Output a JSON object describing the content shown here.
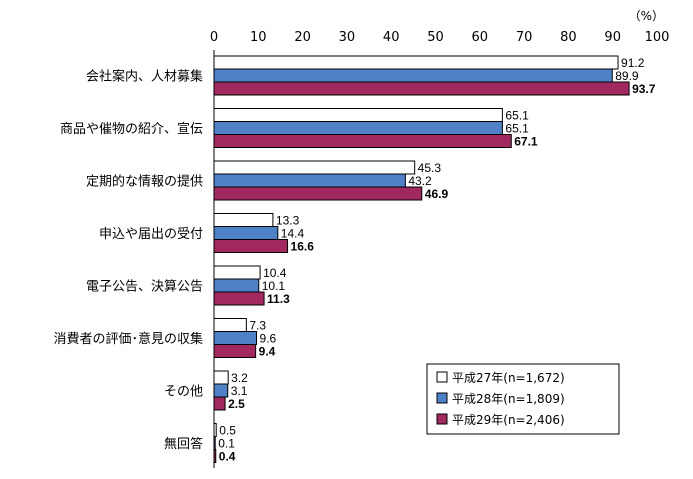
{
  "chart_data": {
    "type": "bar",
    "orientation": "horizontal",
    "unit": "（%）",
    "xlim": [
      0,
      100
    ],
    "xticks": [
      "0",
      "10",
      "20",
      "30",
      "40",
      "50",
      "60",
      "70",
      "80",
      "90",
      "100"
    ],
    "categories": [
      "会社案内、人材募集",
      "商品や催物の紹介、宣伝",
      "定期的な情報の提供",
      "申込や届出の受付",
      "電子公告、決算公告",
      "消費者の評価･意見の収集",
      "その他",
      "無回答"
    ],
    "series": [
      {
        "name": "平成27年(n=1,672)",
        "color": "#ffffff",
        "labels": [
          "91.2",
          "65.1",
          "45.3",
          "13.3",
          "10.4",
          "7.3",
          "3.2",
          "0.5"
        ],
        "values": [
          91.2,
          65.1,
          45.3,
          13.3,
          10.4,
          7.3,
          3.2,
          0.5
        ]
      },
      {
        "name": "平成28年(n=1,809)",
        "color": "#4f81c7",
        "labels": [
          "89.9",
          "65.1",
          "43.2",
          "14.4",
          "10.1",
          "9.6",
          "3.1",
          "0.1"
        ],
        "values": [
          89.9,
          65.1,
          43.2,
          14.4,
          10.1,
          9.6,
          3.1,
          0.1
        ]
      },
      {
        "name": "平成29年(n=2,406)",
        "color": "#a2295f",
        "labels": [
          "93.7",
          "67.1",
          "46.9",
          "16.6",
          "11.3",
          "9.4",
          "2.5",
          "0.4"
        ],
        "values": [
          93.7,
          67.1,
          46.9,
          16.6,
          11.3,
          9.4,
          2.5,
          0.4
        ]
      }
    ],
    "legend_position": "bottom-right",
    "grid": false
  }
}
